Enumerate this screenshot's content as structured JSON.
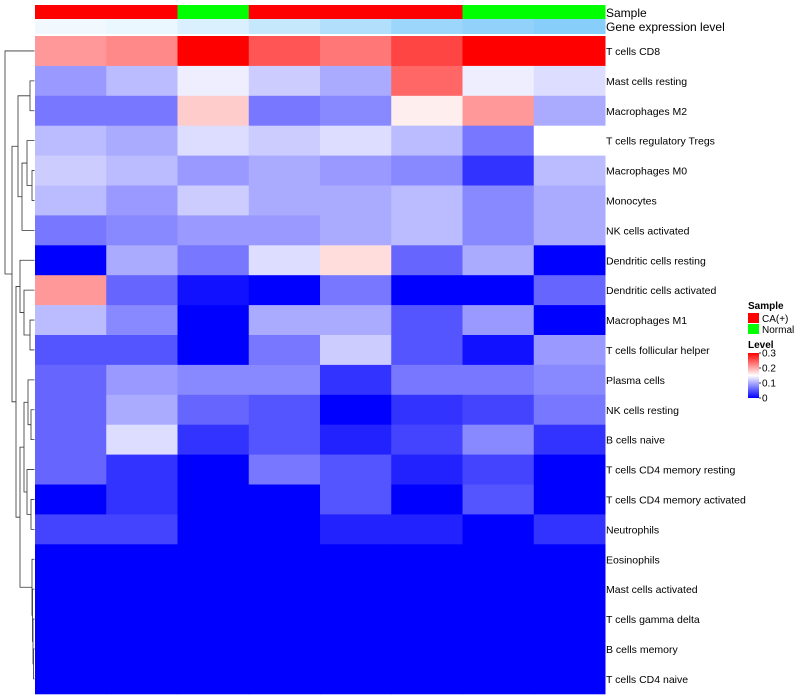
{
  "chart_data": {
    "type": "heatmap",
    "annotation_labels": {
      "sample": "Sample",
      "expression": "Gene expression level"
    },
    "n_columns": 8,
    "column_sample": [
      "CA(+)",
      "CA(+)",
      "Normal",
      "CA(+)",
      "CA(+)",
      "CA(+)",
      "Normal",
      "Normal"
    ],
    "column_expression": [
      0.04,
      0.05,
      0.08,
      0.12,
      0.16,
      0.2,
      0.22,
      0.24
    ],
    "rows": [
      {
        "name": "T cells CD8",
        "values": [
          0.21,
          0.22,
          0.3,
          0.25,
          0.23,
          0.26,
          0.3,
          0.3
        ]
      },
      {
        "name": "Mast cells resting",
        "values": [
          0.09,
          0.11,
          0.14,
          0.12,
          0.1,
          0.24,
          0.14,
          0.13
        ]
      },
      {
        "name": "Macrophages M2",
        "values": [
          0.07,
          0.07,
          0.18,
          0.07,
          0.08,
          0.16,
          0.21,
          0.1
        ]
      },
      {
        "name": "T cells regulatory  Tregs",
        "values": [
          0.11,
          0.1,
          0.13,
          0.12,
          0.13,
          0.11,
          0.07,
          0.15
        ]
      },
      {
        "name": "Macrophages M0",
        "values": [
          0.12,
          0.11,
          0.09,
          0.1,
          0.09,
          0.08,
          0.03,
          0.11
        ]
      },
      {
        "name": "Monocytes",
        "values": [
          0.11,
          0.09,
          0.12,
          0.1,
          0.1,
          0.11,
          0.08,
          0.1
        ]
      },
      {
        "name": "NK cells activated",
        "values": [
          0.07,
          0.08,
          0.09,
          0.09,
          0.1,
          0.11,
          0.08,
          0.1
        ]
      },
      {
        "name": "Dendritic cells resting",
        "values": [
          0.0,
          0.1,
          0.07,
          0.13,
          0.17,
          0.06,
          0.1,
          0.0
        ]
      },
      {
        "name": "Dendritic cells activated",
        "values": [
          0.21,
          0.06,
          0.01,
          0.0,
          0.07,
          0.0,
          0.0,
          0.06
        ]
      },
      {
        "name": "Macrophages M1",
        "values": [
          0.11,
          0.08,
          0.0,
          0.1,
          0.1,
          0.05,
          0.09,
          0.0
        ]
      },
      {
        "name": "T cells follicular helper",
        "values": [
          0.05,
          0.05,
          0.0,
          0.07,
          0.12,
          0.05,
          0.01,
          0.09
        ]
      },
      {
        "name": "Plasma cells",
        "values": [
          0.06,
          0.09,
          0.08,
          0.08,
          0.03,
          0.07,
          0.07,
          0.08
        ]
      },
      {
        "name": "NK cells resting",
        "values": [
          0.06,
          0.1,
          0.06,
          0.05,
          0.0,
          0.03,
          0.04,
          0.07
        ]
      },
      {
        "name": "B cells naive",
        "values": [
          0.06,
          0.13,
          0.03,
          0.05,
          0.02,
          0.04,
          0.08,
          0.03
        ]
      },
      {
        "name": "T cells CD4 memory resting",
        "values": [
          0.06,
          0.03,
          0.0,
          0.07,
          0.05,
          0.02,
          0.04,
          0.0
        ]
      },
      {
        "name": "T cells CD4 memory activated",
        "values": [
          0.0,
          0.03,
          0.0,
          0.0,
          0.05,
          0.0,
          0.05,
          0.0
        ]
      },
      {
        "name": "Neutrophils",
        "values": [
          0.04,
          0.04,
          0.0,
          0.0,
          0.02,
          0.02,
          0.0,
          0.03
        ]
      },
      {
        "name": "Eosinophils",
        "values": [
          0,
          0,
          0,
          0,
          0,
          0,
          0,
          0
        ]
      },
      {
        "name": "Mast cells activated",
        "values": [
          0,
          0,
          0,
          0,
          0,
          0,
          0,
          0
        ]
      },
      {
        "name": "T cells gamma delta",
        "values": [
          0,
          0,
          0,
          0,
          0,
          0,
          0,
          0
        ]
      },
      {
        "name": "B cells memory",
        "values": [
          0,
          0,
          0,
          0,
          0,
          0,
          0,
          0
        ]
      },
      {
        "name": "T cells CD4 naive",
        "values": [
          0,
          0,
          0,
          0,
          0,
          0,
          0,
          0
        ]
      }
    ],
    "color_scale": {
      "low": "#0000FF",
      "mid": "#FFFFFF",
      "high": "#FF0000",
      "min": 0,
      "mid_value": 0.15,
      "max": 0.3
    },
    "sample_colors": {
      "CA(+)": "#FF0000",
      "Normal": "#00FF00"
    },
    "expression_colors": {
      "low": "#FFFFFF",
      "high": "#87CEFA"
    },
    "legend": {
      "sample_title": "Sample",
      "sample_entries": [
        {
          "label": "CA(+)",
          "color": "#FF0000"
        },
        {
          "label": "Normal",
          "color": "#00FF00"
        }
      ],
      "level_title": "Level",
      "level_ticks": [
        "0.3",
        "0.2",
        "0.1",
        "0"
      ],
      "level_tick_values": [
        0.3,
        0.2,
        0.1,
        0
      ]
    }
  }
}
